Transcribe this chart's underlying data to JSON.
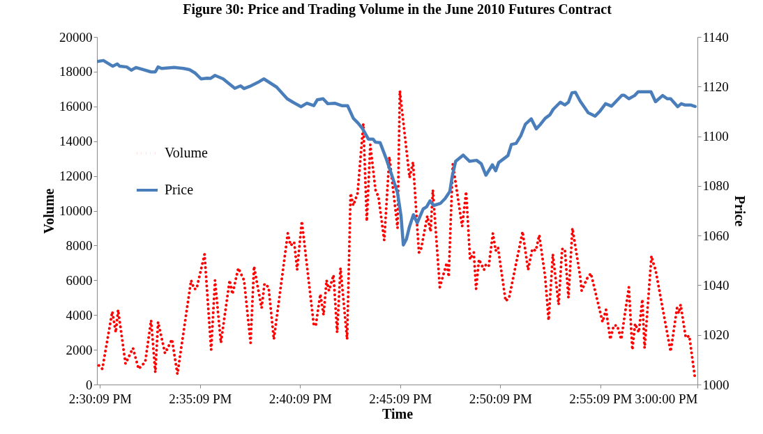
{
  "chart_data": {
    "type": "line",
    "title": "Figure 30: Price and Trading Volume in the June 2010 Futures Contract",
    "xlabel": "Time",
    "ylabel": "Volume",
    "y2label": "Price",
    "xlim": [
      14.5,
      15.0
    ],
    "xticks": [
      {
        "value": 14.5025,
        "label": "2:30:09 PM"
      },
      {
        "value": 14.58583,
        "label": "2:35:09 PM"
      },
      {
        "value": 14.66917,
        "label": "2:40:09 PM"
      },
      {
        "value": 14.7525,
        "label": "2:45:09 PM"
      },
      {
        "value": 14.83583,
        "label": "2:50:09 PM"
      },
      {
        "value": 14.91917,
        "label": "2:55:09 PM"
      },
      {
        "value": 15.0,
        "label": "3:00:00 PM"
      }
    ],
    "ylim": [
      0,
      20000
    ],
    "yticks": [
      0,
      2000,
      4000,
      6000,
      8000,
      10000,
      12000,
      14000,
      16000,
      18000,
      20000
    ],
    "y2lim": [
      1000,
      1140
    ],
    "y2ticks": [
      1000,
      1020,
      1040,
      1060,
      1080,
      1100,
      1120,
      1140
    ],
    "legend": "top left",
    "series": [
      {
        "name": "Volume",
        "color": "#ff0000",
        "line_style": "dotted",
        "axis": "y",
        "x": [
          14.5016,
          14.5045,
          14.5128,
          14.5157,
          14.5176,
          14.5238,
          14.53,
          14.5347,
          14.5402,
          14.5451,
          14.5486,
          14.5509,
          14.5567,
          14.5625,
          14.567,
          14.5784,
          14.5809,
          14.5829,
          14.5896,
          14.5951,
          14.5983,
          14.6032,
          14.6105,
          14.6128,
          14.6177,
          14.6225,
          14.6279,
          14.6308,
          14.6371,
          14.6395,
          14.6429,
          14.6473,
          14.6589,
          14.6613,
          14.6642,
          14.6667,
          14.6706,
          14.6806,
          14.6822,
          14.686,
          14.6887,
          14.6912,
          14.6932,
          14.697,
          14.7,
          14.7028,
          14.7083,
          14.7112,
          14.7135,
          14.717,
          14.7218,
          14.7247,
          14.7276,
          14.7319,
          14.7344,
          14.7392,
          14.7435,
          14.7503,
          14.7522,
          14.7603,
          14.7632,
          14.7681,
          14.7696,
          14.7751,
          14.7778,
          14.7797,
          14.7855,
          14.7913,
          14.7929,
          14.7963,
          14.8041,
          14.8074,
          14.8107,
          14.8138,
          14.8157,
          14.8181,
          14.8223,
          14.8239,
          14.8262,
          14.8297,
          14.832,
          14.8339,
          14.8403,
          14.8432,
          14.8544,
          14.859,
          14.8625,
          14.8654,
          14.8683,
          14.8732,
          14.8761,
          14.8796,
          14.8844,
          14.8873,
          14.8896,
          14.8926,
          14.8959,
          14.9024,
          14.9036,
          14.9081,
          14.9113,
          14.921,
          14.9239,
          14.9274,
          14.9303,
          14.9332,
          14.9365,
          14.9429,
          14.9458,
          14.9481,
          14.9512,
          14.9541,
          14.956,
          14.9617,
          14.9632,
          14.9651,
          14.9777,
          14.983,
          14.9845,
          14.986,
          14.9903,
          14.9932,
          14.9981
        ],
        "values": [
          1100,
          900,
          4200,
          3000,
          4300,
          1200,
          2100,
          900,
          1300,
          3700,
          700,
          3600,
          1800,
          2600,
          600,
          6000,
          5500,
          5500,
          7500,
          2000,
          6000,
          2400,
          6000,
          5200,
          6700,
          6000,
          2400,
          6800,
          4400,
          5800,
          5600,
          2600,
          8700,
          8000,
          8200,
          6600,
          9400,
          3400,
          3400,
          5200,
          4000,
          6000,
          5400,
          6300,
          3000,
          6700,
          2600,
          11000,
          10300,
          11000,
          15000,
          9400,
          13800,
          11200,
          10800,
          8300,
          13100,
          9000,
          16900,
          11900,
          12800,
          7600,
          7700,
          9700,
          8800,
          11200,
          5600,
          7000,
          6200,
          12700,
          9100,
          11100,
          7200,
          7600,
          5500,
          7200,
          6600,
          6900,
          6800,
          8700,
          7700,
          7900,
          4800,
          5000,
          8800,
          6600,
          7800,
          7700,
          8600,
          6200,
          3700,
          7500,
          4600,
          7800,
          7800,
          5000,
          9000,
          6200,
          5400,
          6100,
          6400,
          3600,
          4300,
          2600,
          3400,
          3400,
          2600,
          5600,
          2000,
          3500,
          3000,
          4900,
          2100,
          7400,
          7000,
          6600,
          1900,
          4400,
          4100,
          4600,
          2700,
          2800,
          300
        ]
      },
      {
        "name": "Price",
        "color": "#4a7ebb",
        "line_style": "solid",
        "axis": "y2",
        "x": [
          14.5002,
          14.5054,
          14.5132,
          14.517,
          14.519,
          14.5248,
          14.5286,
          14.5325,
          14.5451,
          14.5486,
          14.5509,
          14.5538,
          14.5645,
          14.5722,
          14.5771,
          14.5819,
          14.5867,
          14.5916,
          14.5945,
          14.5983,
          14.6051,
          14.6099,
          14.6148,
          14.6196,
          14.6225,
          14.6273,
          14.6351,
          14.639,
          14.6496,
          14.6584,
          14.6632,
          14.67,
          14.6748,
          14.6806,
          14.6835,
          14.6883,
          14.6922,
          14.698,
          14.7038,
          14.7087,
          14.7135,
          14.7174,
          14.7212,
          14.7261,
          14.73,
          14.7319,
          14.7358,
          14.7406,
          14.7455,
          14.7503,
          14.7532,
          14.7551,
          14.7577,
          14.76,
          14.7635,
          14.7667,
          14.7716,
          14.7745,
          14.7774,
          14.7803,
          14.7861,
          14.7899,
          14.7938,
          14.7958,
          14.7987,
          14.8049,
          14.8103,
          14.8161,
          14.82,
          14.8239,
          14.8293,
          14.832,
          14.8345,
          14.8422,
          14.8451,
          14.849,
          14.8529,
          14.8567,
          14.8616,
          14.8658,
          14.8693,
          14.8732,
          14.8771,
          14.88,
          14.8858,
          14.8896,
          14.8926,
          14.8955,
          14.8984,
          14.9023,
          14.909,
          14.9148,
          14.9187,
          14.9235,
          14.9284,
          14.9371,
          14.939,
          14.9429,
          14.9477,
          14.9506,
          14.9613,
          14.9651,
          14.971,
          14.9748,
          14.9777,
          14.9836,
          14.9865,
          14.9894,
          14.9942,
          14.9981
        ],
        "values": [
          1130.1,
          1130.5,
          1128.2,
          1129.1,
          1128.2,
          1127.9,
          1126.6,
          1127.7,
          1125.9,
          1125.9,
          1127.9,
          1127.3,
          1127.7,
          1127.3,
          1126.8,
          1125.4,
          1123.1,
          1123.4,
          1123.3,
          1124.5,
          1123.1,
          1121.2,
          1119.3,
          1120.3,
          1119.2,
          1120.1,
          1122.0,
          1123.1,
          1119.8,
          1115.1,
          1113.7,
          1111.9,
          1113.3,
          1112.3,
          1114.7,
          1115.1,
          1113.1,
          1113.3,
          1112.3,
          1112.3,
          1107.2,
          1105.3,
          1103.0,
          1098.8,
          1098.8,
          1097.6,
          1097.4,
          1091.3,
          1084.3,
          1077.2,
          1067.9,
          1056.2,
          1058.6,
          1063.2,
          1068.4,
          1065.1,
          1070.7,
          1071.6,
          1074.0,
          1072.1,
          1073.0,
          1074.9,
          1077.7,
          1083.8,
          1089.9,
          1092.4,
          1089.9,
          1090.3,
          1088.9,
          1084.3,
          1088.5,
          1086.1,
          1089.4,
          1092.2,
          1096.7,
          1097.1,
          1100.2,
          1104.8,
          1107.0,
          1103.0,
          1104.8,
          1107.2,
          1108.6,
          1110.9,
          1113.7,
          1112.6,
          1113.7,
          1117.5,
          1117.7,
          1114.2,
          1109.5,
          1108.1,
          1110.0,
          1113.1,
          1112.1,
          1116.5,
          1116.5,
          1115.1,
          1116.4,
          1117.9,
          1117.9,
          1113.9,
          1116.4,
          1115.1,
          1115.1,
          1111.9,
          1113.1,
          1112.6,
          1112.6,
          1112.0
        ]
      }
    ]
  }
}
